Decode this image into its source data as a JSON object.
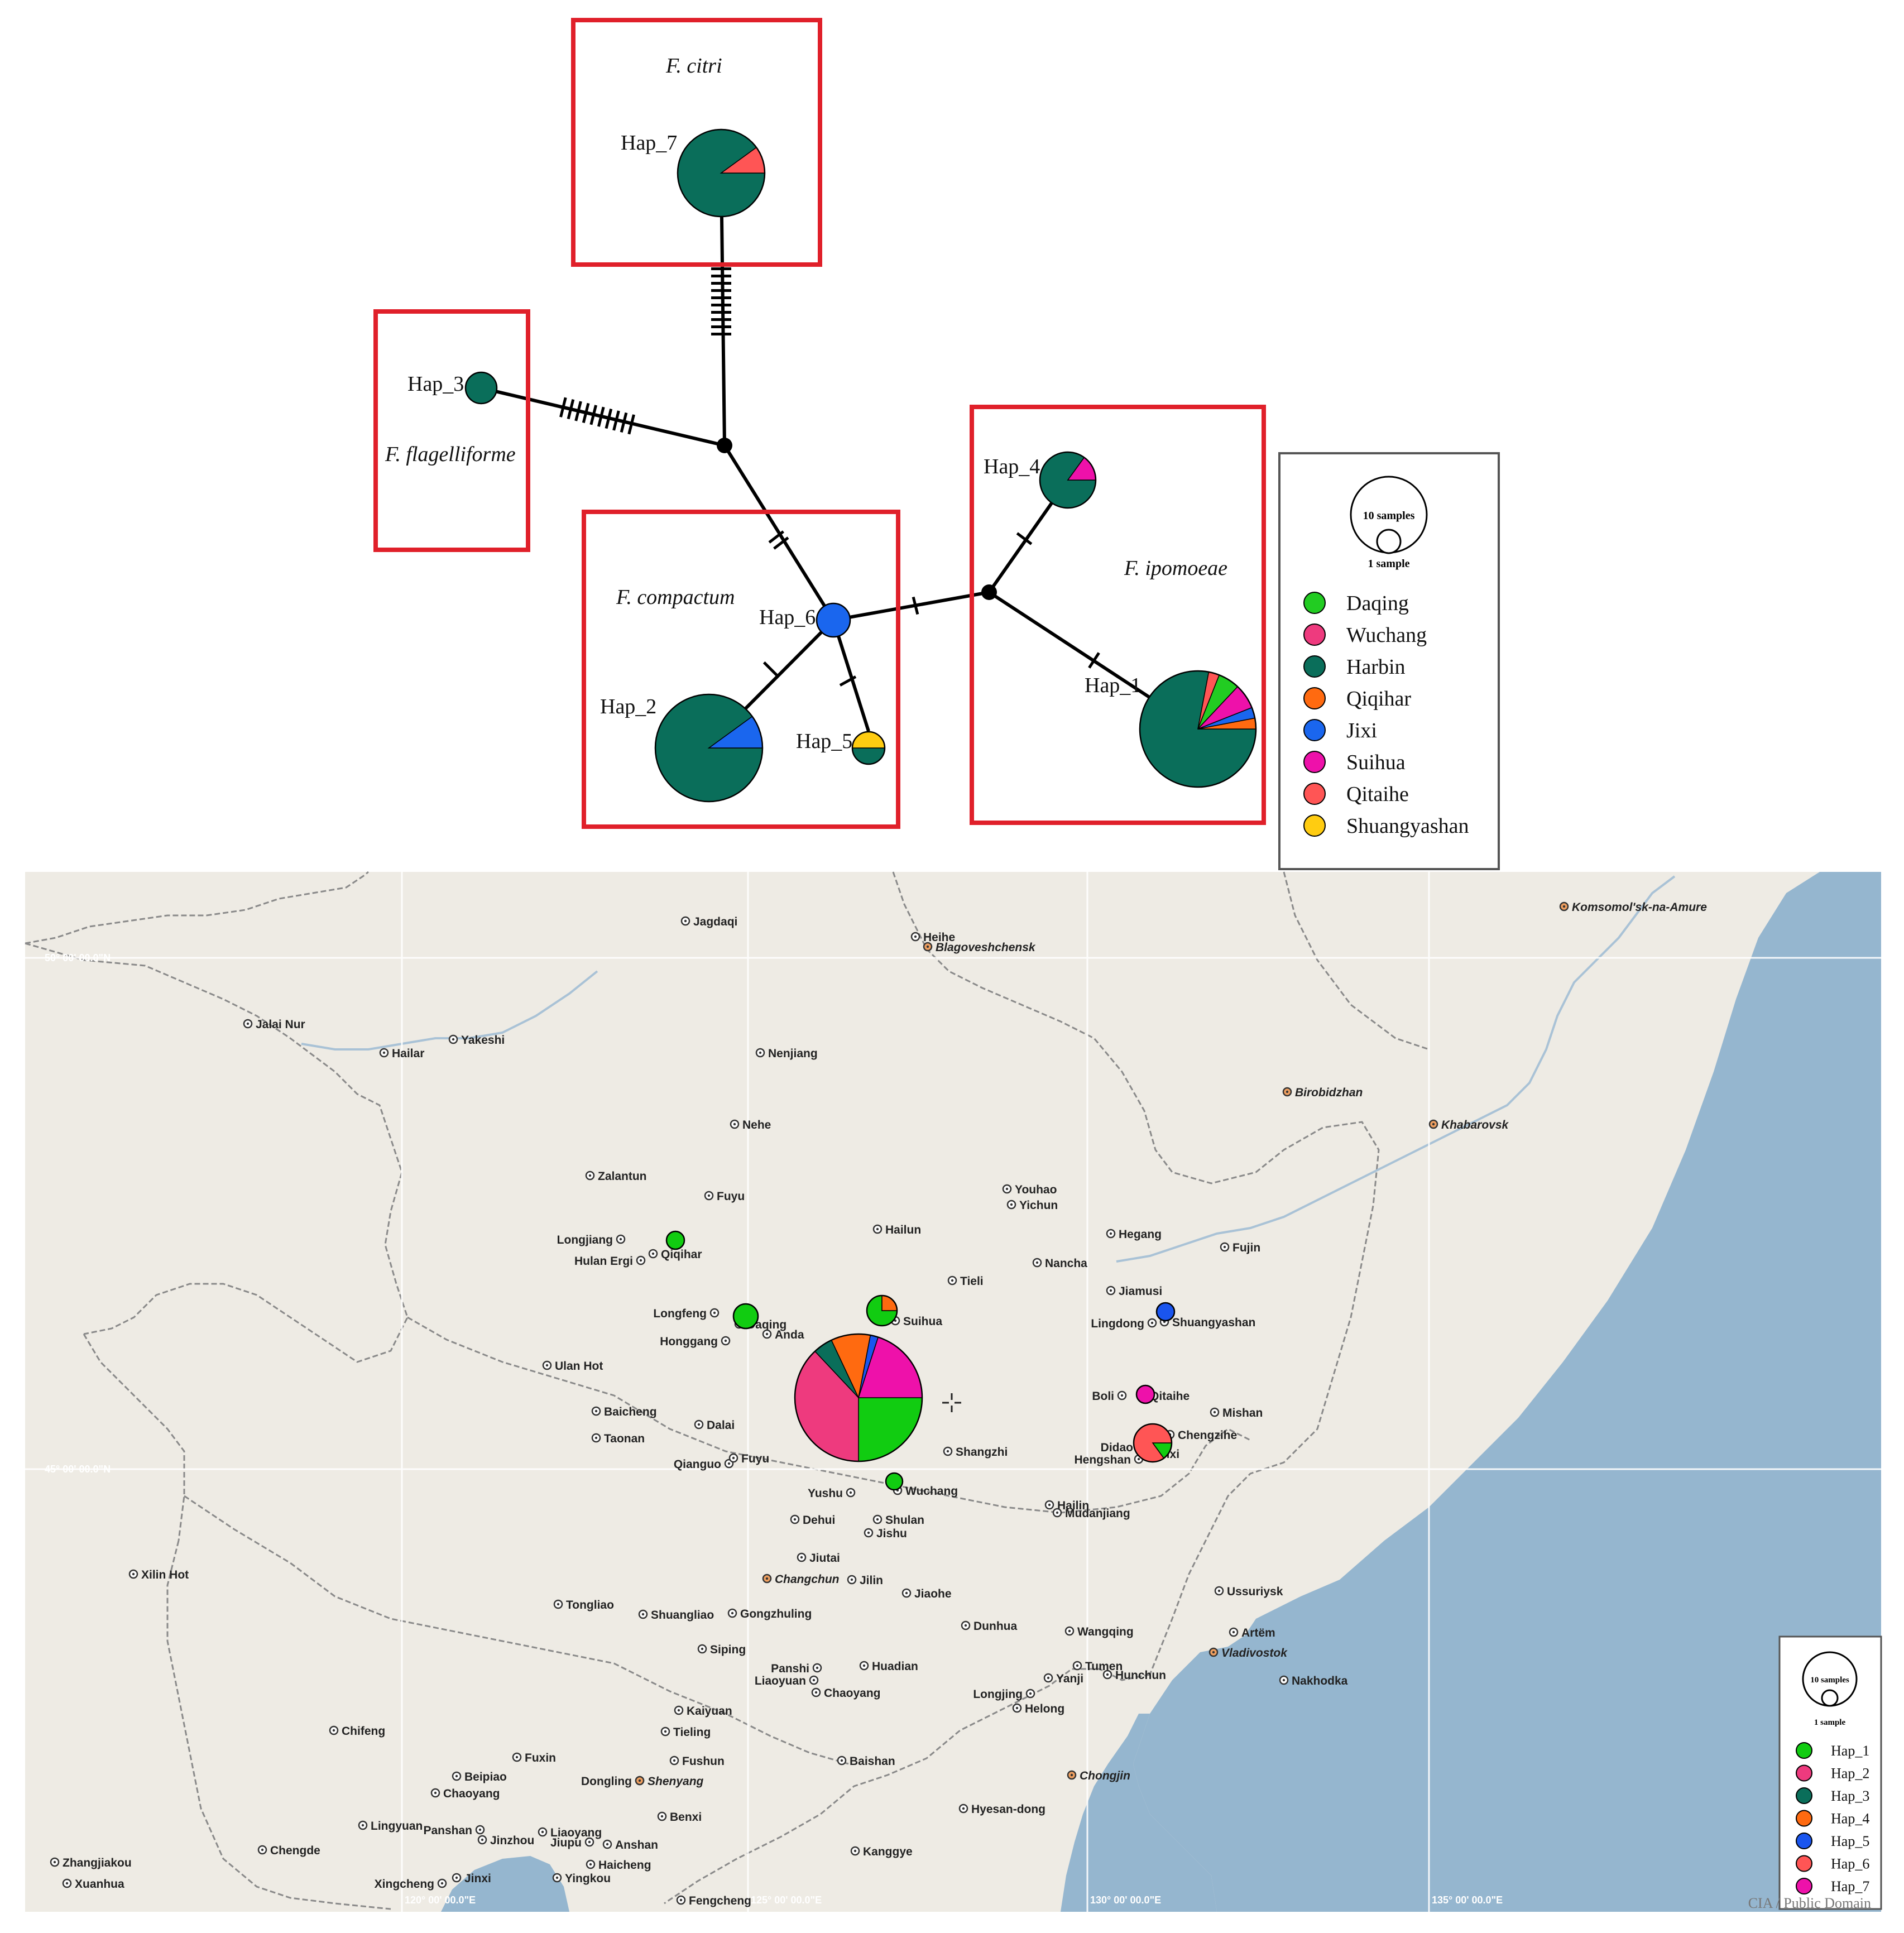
{
  "network": {
    "species_groups": [
      {
        "id": "citri",
        "label": "F. citri"
      },
      {
        "id": "flagelliforme",
        "label": "F. flagelliforme"
      },
      {
        "id": "compactum",
        "label": "F. compactum"
      },
      {
        "id": "ipomoeae",
        "label": "F. ipomoeae"
      }
    ],
    "haplotypes": [
      {
        "id": "hap7",
        "label": "Hap_7",
        "fractions": {
          "Harbin": 0.9,
          "Qitaihe": 0.1
        }
      },
      {
        "id": "hap3",
        "label": "Hap_3",
        "fractions": {
          "Harbin": 1.0
        }
      },
      {
        "id": "hap6",
        "label": "Hap_6",
        "fractions": {
          "Jixi": 1.0
        }
      },
      {
        "id": "hap2",
        "label": "Hap_2",
        "fractions": {
          "Harbin": 0.9,
          "Jixi": 0.1
        }
      },
      {
        "id": "hap5",
        "label": "Hap_5",
        "fractions": {
          "Harbin": 0.5,
          "Shuangyashan": 0.5
        }
      },
      {
        "id": "hap4",
        "label": "Hap_4",
        "fractions": {
          "Harbin": 0.85,
          "Suihua": 0.15
        }
      },
      {
        "id": "hap1",
        "label": "Hap_1",
        "fractions": {
          "Harbin": 0.78,
          "Qitaihe": 0.03,
          "Daqing": 0.06,
          "Suihua": 0.07,
          "Jixi": 0.03,
          "Qiqihar": 0.03
        }
      }
    ],
    "mutation_counts": {
      "hap7_node": 10,
      "hap3_node": 10,
      "node_hap6": 2,
      "hap6_hap2": 1,
      "hap6_hap5": 1,
      "hap6_node2": 1,
      "node2_hap4": 1,
      "node2_hap1": 1
    },
    "legend": {
      "size_large": "10 samples",
      "size_small": "1 sample",
      "populations": [
        {
          "name": "Daqing",
          "color": "#22cc22"
        },
        {
          "name": "Wuchang",
          "color": "#ee3a7e"
        },
        {
          "name": "Harbin",
          "color": "#0a6e5a"
        },
        {
          "name": "Qiqihar",
          "color": "#ff6a10"
        },
        {
          "name": "Jixi",
          "color": "#1a66ee"
        },
        {
          "name": "Suihua",
          "color": "#ee11aa"
        },
        {
          "name": "Qitaihe",
          "color": "#ff5555"
        },
        {
          "name": "Shuangyashan",
          "color": "#ffcc11"
        }
      ]
    }
  },
  "map": {
    "colors": {
      "land": "#eeebe4",
      "sea": "#95b6cf",
      "border": "#888888",
      "river": "#a9c2d6"
    },
    "cities": [
      {
        "name": "Jagdaqi"
      },
      {
        "name": "Heihe"
      },
      {
        "name": "Blagoveshchensk",
        "italic": true
      },
      {
        "name": "Komsomol'sk-na-Amure",
        "italic": true
      },
      {
        "name": "Jalai Nur"
      },
      {
        "name": "Hailar"
      },
      {
        "name": "Yakeshi"
      },
      {
        "name": "Nenjiang"
      },
      {
        "name": "Birobidzhan",
        "italic": true
      },
      {
        "name": "Khabarovsk",
        "italic": true
      },
      {
        "name": "Nehe"
      },
      {
        "name": "Zalantun"
      },
      {
        "name": "Fuyu"
      },
      {
        "name": "Youhao"
      },
      {
        "name": "Yichun"
      },
      {
        "name": "Longjiang"
      },
      {
        "name": "Qiqihar"
      },
      {
        "name": "Hulan Ergi"
      },
      {
        "name": "Hailun"
      },
      {
        "name": "Hegang"
      },
      {
        "name": "Fujin"
      },
      {
        "name": "Nancha"
      },
      {
        "name": "Tieli"
      },
      {
        "name": "Jiamusi"
      },
      {
        "name": "Longfeng"
      },
      {
        "name": "Daqing"
      },
      {
        "name": "Suihua"
      },
      {
        "name": "Lingdong"
      },
      {
        "name": "Shuangyashan"
      },
      {
        "name": "Honggang"
      },
      {
        "name": "Anda"
      },
      {
        "name": "Ulan Hot"
      },
      {
        "name": "Boli"
      },
      {
        "name": "Qitaihe"
      },
      {
        "name": "Mishan"
      },
      {
        "name": "Baicheng"
      },
      {
        "name": "Dalai"
      },
      {
        "name": "Chengzihe"
      },
      {
        "name": "Taonan"
      },
      {
        "name": "Didao"
      },
      {
        "name": "Jixi"
      },
      {
        "name": "Hengshan"
      },
      {
        "name": "Shangzhi"
      },
      {
        "name": "Qianguo"
      },
      {
        "name": "Fuyu"
      },
      {
        "name": "Wuchang"
      },
      {
        "name": "Yushu"
      },
      {
        "name": "Hailin"
      },
      {
        "name": "Mudanjiang"
      },
      {
        "name": "Dehui"
      },
      {
        "name": "Shulan"
      },
      {
        "name": "Jishu"
      },
      {
        "name": "Jiutai"
      },
      {
        "name": "Xilin Hot"
      },
      {
        "name": "Changchun",
        "italic": true
      },
      {
        "name": "Jilin"
      },
      {
        "name": "Jiaohe"
      },
      {
        "name": "Ussuriysk"
      },
      {
        "name": "Tongliao"
      },
      {
        "name": "Shuangliao"
      },
      {
        "name": "Gongzhuling"
      },
      {
        "name": "Dunhua"
      },
      {
        "name": "Wangqing"
      },
      {
        "name": "Artëm"
      },
      {
        "name": "Vladivostok",
        "italic": true
      },
      {
        "name": "Siping"
      },
      {
        "name": "Panshi"
      },
      {
        "name": "Tumen"
      },
      {
        "name": "Liaoyuan"
      },
      {
        "name": "Huadian"
      },
      {
        "name": "Yanji"
      },
      {
        "name": "Hunchun"
      },
      {
        "name": "Nakhodka"
      },
      {
        "name": "Chaoyang"
      },
      {
        "name": "Longjing"
      },
      {
        "name": "Helong"
      },
      {
        "name": "Kaiyuan"
      },
      {
        "name": "Tieling"
      },
      {
        "name": "Chifeng"
      },
      {
        "name": "Fuxin"
      },
      {
        "name": "Fushun"
      },
      {
        "name": "Baishan"
      },
      {
        "name": "Beipiao"
      },
      {
        "name": "Dongling"
      },
      {
        "name": "Shenyang",
        "italic": true
      },
      {
        "name": "Chongjin",
        "italic": true
      },
      {
        "name": "Chaoyang"
      },
      {
        "name": "Benxi"
      },
      {
        "name": "Panshan"
      },
      {
        "name": "Liaoyang"
      },
      {
        "name": "Lingyuan"
      },
      {
        "name": "Hyesan-dong"
      },
      {
        "name": "Jinzhou"
      },
      {
        "name": "Anshan"
      },
      {
        "name": "Jiupu"
      },
      {
        "name": "Chengde"
      },
      {
        "name": "Kanggye"
      },
      {
        "name": "Haicheng"
      },
      {
        "name": "Zhangjiakou"
      },
      {
        "name": "Jinxi"
      },
      {
        "name": "Yingkou"
      },
      {
        "name": "Xuanhua"
      },
      {
        "name": "Xingcheng"
      },
      {
        "name": "Fengcheng"
      }
    ],
    "grid_labels": [
      "50° 00' 00.0\"N",
      "45° 00' 00.0\"N",
      "120° 00' 00.0\"E",
      "125° 00' 00.0\"E",
      "130° 00' 00.0\"E",
      "135° 00' 00.0\"E"
    ],
    "site_pies": [
      {
        "site": "Qiqihar",
        "fractions": {
          "Hap_1": 1.0
        }
      },
      {
        "site": "Daqing",
        "fractions": {
          "Hap_1": 1.0
        }
      },
      {
        "site": "Suihua",
        "fractions": {
          "Hap_1": 0.75,
          "Hap_4": 0.25
        }
      },
      {
        "site": "Shuangyashan",
        "fractions": {
          "Hap_5": 1.0
        }
      },
      {
        "site": "Harbin",
        "fractions": {
          "Hap_1": 0.25,
          "Hap_2": 0.38,
          "Hap_3": 0.05,
          "Hap_4": 0.1,
          "Hap_5": 0.02,
          "Hap_6": 0.0,
          "Hap_7": 0.2
        }
      },
      {
        "site": "Qitaihe",
        "fractions": {
          "Hap_7": 1.0
        }
      },
      {
        "site": "Jixi",
        "fractions": {
          "Hap_1": 0.15,
          "Hap_6": 0.85
        }
      },
      {
        "site": "Wuchang",
        "fractions": {
          "Hap_1": 1.0
        }
      }
    ],
    "legend": {
      "size_large": "10 samples",
      "size_small": "1 sample",
      "haplotypes": [
        {
          "name": "Hap_1",
          "color": "#11cc11"
        },
        {
          "name": "Hap_2",
          "color": "#ee3a7e"
        },
        {
          "name": "Hap_3",
          "color": "#0a6e5a"
        },
        {
          "name": "Hap_4",
          "color": "#ff6a10"
        },
        {
          "name": "Hap_5",
          "color": "#1a55ee"
        },
        {
          "name": "Hap_6",
          "color": "#ff5555"
        },
        {
          "name": "Hap_7",
          "color": "#ee11aa"
        }
      ]
    },
    "credit": "CIA / Public Domain"
  }
}
